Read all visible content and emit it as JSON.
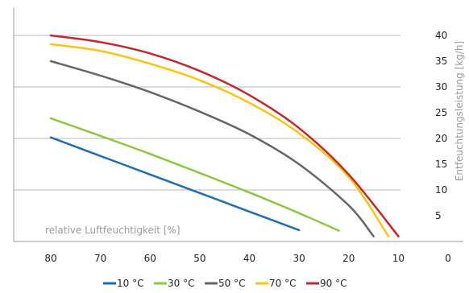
{
  "chart_data": {
    "type": "line",
    "title": "",
    "xlabel": "relative Luftfeuchtigkeit [%]",
    "ylabel": "Entfeuchtungsleistung [kg/h]",
    "xlim": [
      80,
      0
    ],
    "ylim": [
      0,
      43
    ],
    "x_ticks": [
      "80",
      "70",
      "60",
      "50",
      "40",
      "30",
      "20",
      "10",
      "0"
    ],
    "y_ticks": [
      "5",
      "10",
      "15",
      "20",
      "25",
      "30",
      "35",
      "40"
    ],
    "grid": true,
    "legend_position": "bottom",
    "series": [
      {
        "name": "10 °C",
        "color": "#1f6db3",
        "x": [
          80,
          70,
          60,
          50,
          40,
          30
        ],
        "y": [
          20.2,
          16.6,
          13.0,
          9.4,
          5.8,
          2.2
        ]
      },
      {
        "name": "30 °C",
        "color": "#8dc63f",
        "x": [
          80,
          70,
          60,
          50,
          40,
          30,
          22
        ],
        "y": [
          23.9,
          20.5,
          17.0,
          13.3,
          9.5,
          5.5,
          2.1
        ]
      },
      {
        "name": "50 °C",
        "color": "#666666",
        "x": [
          80,
          70,
          60,
          50,
          40,
          30,
          20,
          15
        ],
        "y": [
          35.0,
          32.2,
          29.0,
          25.2,
          20.8,
          15.0,
          7.0,
          1.0
        ]
      },
      {
        "name": "70 °C",
        "color": "#ffc20e",
        "x": [
          80,
          70,
          60,
          50,
          40,
          30,
          20,
          12
        ],
        "y": [
          38.3,
          37.0,
          34.5,
          31.3,
          26.9,
          21.0,
          12.5,
          1.0
        ]
      },
      {
        "name": "90 °C",
        "color": "#c1272d",
        "x": [
          80,
          70,
          60,
          50,
          40,
          30,
          20,
          10
        ],
        "y": [
          40.0,
          38.7,
          36.5,
          33.1,
          28.4,
          22.0,
          13.0,
          1.0
        ]
      }
    ]
  }
}
